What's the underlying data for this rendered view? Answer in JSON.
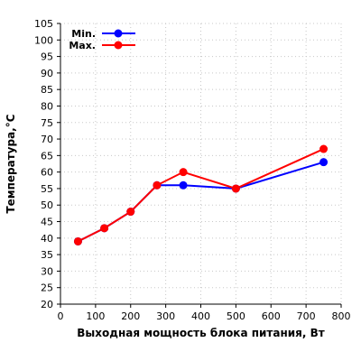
{
  "chart_data": {
    "type": "line",
    "title": "",
    "xlabel": "Выходная мощность блока питания, Вт",
    "ylabel": "Температура,°C",
    "xlim": [
      0,
      800
    ],
    "ylim": [
      20,
      105
    ],
    "x_ticks": [
      "0",
      "100",
      "200",
      "300",
      "400",
      "500",
      "600",
      "700",
      "800"
    ],
    "y_ticks": [
      "20",
      "25",
      "30",
      "35",
      "40",
      "45",
      "50",
      "55",
      "60",
      "65",
      "70",
      "75",
      "80",
      "85",
      "90",
      "95",
      "100",
      "105"
    ],
    "grid": true,
    "legend_position": "top-left",
    "series": [
      {
        "name": "Min.",
        "color": "#0000ff",
        "points": [
          {
            "x": 50,
            "y": 39
          },
          {
            "x": 125,
            "y": 43
          },
          {
            "x": 200,
            "y": 48
          },
          {
            "x": 275,
            "y": 56
          },
          {
            "x": 350,
            "y": 56
          },
          {
            "x": 500,
            "y": 55
          },
          {
            "x": 750,
            "y": 63
          }
        ]
      },
      {
        "name": "Max.",
        "color": "#ff0000",
        "points": [
          {
            "x": 50,
            "y": 39
          },
          {
            "x": 125,
            "y": 43
          },
          {
            "x": 200,
            "y": 48
          },
          {
            "x": 275,
            "y": 56
          },
          {
            "x": 350,
            "y": 60
          },
          {
            "x": 500,
            "y": 55
          },
          {
            "x": 750,
            "y": 67
          }
        ]
      }
    ]
  }
}
